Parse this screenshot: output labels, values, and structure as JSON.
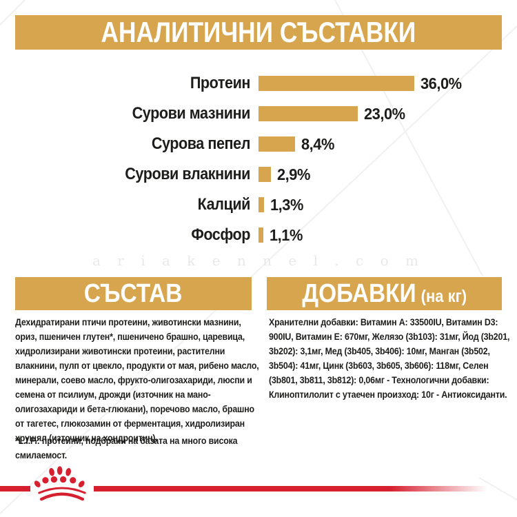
{
  "header": {
    "title": "АНАЛИТИЧНИ СЪСТАВКИ"
  },
  "chart_data": {
    "type": "bar",
    "orientation": "horizontal",
    "title": "АНАЛИТИЧНИ СЪСТАВКИ",
    "categories": [
      "Протеин",
      "Сурови мазнини",
      "Сурова пепел",
      "Сурови влакнини",
      "Калций",
      "Фосфор"
    ],
    "values": [
      36.0,
      23.0,
      8.4,
      2.9,
      1.3,
      1.1
    ],
    "value_labels": [
      "36,0%",
      "23,0%",
      "8,4%",
      "2,9%",
      "1,3%",
      "1,1%"
    ],
    "unit": "%",
    "xlabel": "",
    "ylabel": "",
    "xlim": [
      0,
      40
    ],
    "grid": false,
    "legend": "none",
    "bar_color": "#D7A54D"
  },
  "watermark": {
    "text": "a r i a k e n n e l . c o m"
  },
  "composition": {
    "title": "СЪСТАВ",
    "body": "Дехидратирани птичи протеини, животински мазнини, ориз, пшеничен глутен*, пшеничено брашно, царевица, хидролизирани животински протеини, растителни влакнини, пулп от цвекло, продукти от мая, рибено масло, минерали, соево масло, фрукто-олигозахариди, люспи и семена от псилиум, дрожди (източник на мано-олигозахариди и бета-глюкани), поречово масло, брашно от тагетес, глюкозамин от ферментация, хидролизиран хрущял (източник на хондроитин).",
    "footnote": "*L.I.P.: протеини, подбрани на базата на много висока смилаемост."
  },
  "additives": {
    "title": "ДОБАВКИ",
    "title_suffix": "(на кг)",
    "body": "Хранителни добавки: Витамин A: 33500IU, Витамин D3: 900IU, Витамин E: 670мг, Желязо (3b103): 31мг, Йод (3b201, 3b202): 3,1мг, Мед (3b405, 3b406): 10мг, Манган (3b502, 3b504): 41мг, Цинк (3b603, 3b605, 3b606): 118мг, Селен (3b801, 3b811, 3b812): 0,06мг - Технологични добавки: Клиноптилолит с утаечен произход: 10г - Антиоксиданти."
  },
  "logo": {
    "name": "royal-canin-crown"
  },
  "colors": {
    "gold": "#D7A54D",
    "red": "#D6202F",
    "text": "#1D1D1B",
    "watermark": "#E8E8E8"
  }
}
